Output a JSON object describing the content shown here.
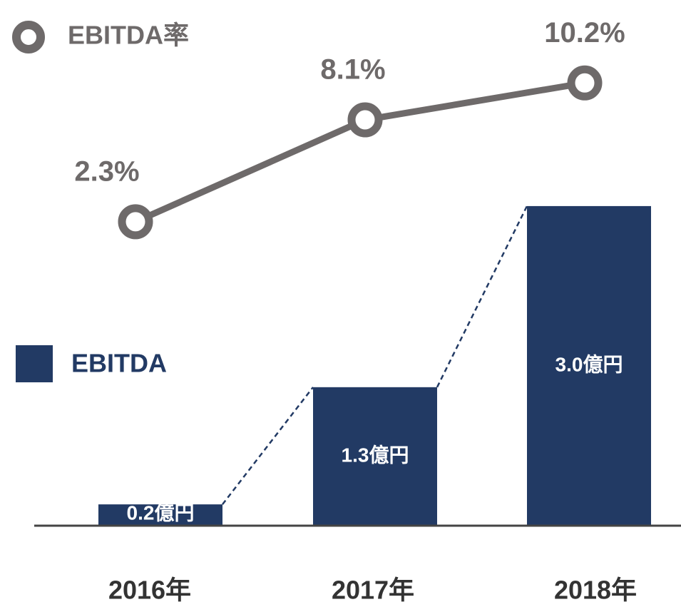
{
  "chart_data": {
    "type": "bar",
    "categories": [
      "2016年",
      "2017年",
      "2018年"
    ],
    "series": [
      {
        "name": "EBITDA",
        "type": "bar",
        "color": "#223a64",
        "values": [
          0.2,
          1.3,
          3.0
        ],
        "value_labels": [
          "0.2億円",
          "1.3億円",
          "3.0億円"
        ]
      },
      {
        "name": "EBITDA率",
        "type": "line",
        "axis": "y2",
        "color": "#6e6a6a",
        "values": [
          2.3,
          8.1,
          10.2
        ],
        "value_labels": [
          "2.3%",
          "8.1%",
          "10.2%"
        ]
      }
    ],
    "ylim": [
      0,
      4.7
    ],
    "y2lim": [
      -15,
      13.5
    ]
  }
}
